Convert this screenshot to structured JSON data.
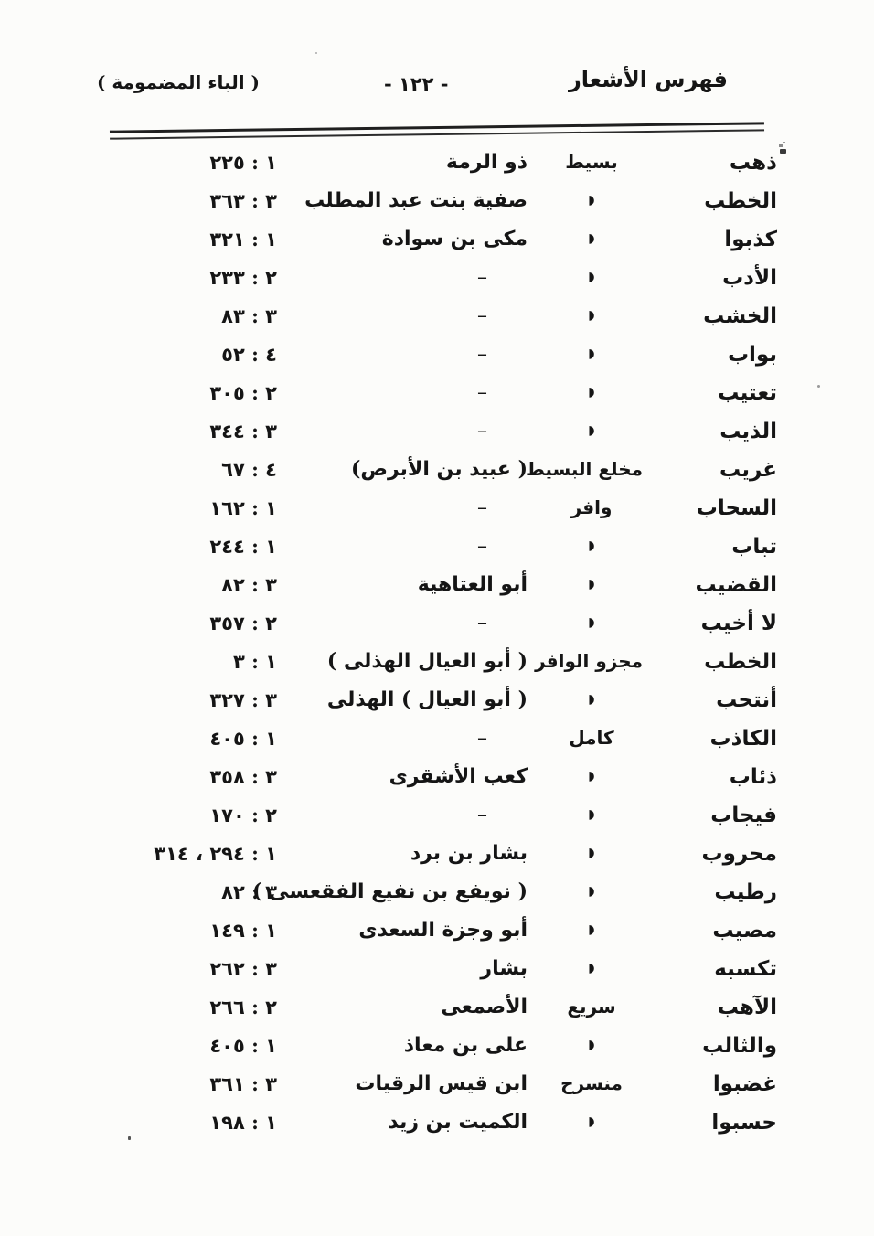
{
  "document": {
    "header": {
      "title": "فهرس الأشعار",
      "page_number": "- ١٢٢ -",
      "section_label": "( الباء المضمومة )"
    },
    "table": {
      "ditto_mark": "◗",
      "empty_mark": "–",
      "rows": [
        {
          "rhyme": "ذهب",
          "meter": "بسيط",
          "poet": "ذو الرمة",
          "ref": "١ : ٢٢٥"
        },
        {
          "rhyme": "الخطب",
          "meter": "◗",
          "poet": "صفية بنت عبد المطلب",
          "ref": "٣ : ٣٦٣"
        },
        {
          "rhyme": "كذبوا",
          "meter": "◗",
          "poet": "مكى بن سوادة",
          "ref": "١ : ٣٢١"
        },
        {
          "rhyme": "الأدب",
          "meter": "◗",
          "poet": "–",
          "ref": "٢ : ٢٣٣"
        },
        {
          "rhyme": "الخشب",
          "meter": "◗",
          "poet": "–",
          "ref": "٣ : ٨٣"
        },
        {
          "rhyme": "بواب",
          "meter": "◗",
          "poet": "–",
          "ref": "٤ : ٥٢"
        },
        {
          "rhyme": "تعتيب",
          "meter": "◗",
          "poet": "–",
          "ref": "٢ : ٣٠٥"
        },
        {
          "rhyme": "الذيب",
          "meter": "◗",
          "poet": "–",
          "ref": "٣ : ٣٤٤"
        },
        {
          "rhyme": "غريب",
          "meter": "مخلع البسيط",
          "poet": "( عبيد بن الأبرص)",
          "ref": "٤ : ٦٧"
        },
        {
          "rhyme": "السحاب",
          "meter": "وافر",
          "poet": "–",
          "ref": "١ : ١٦٢"
        },
        {
          "rhyme": "تباب",
          "meter": "◗",
          "poet": "–",
          "ref": "١ : ٢٤٤"
        },
        {
          "rhyme": "القضيب",
          "meter": "◗",
          "poet": "أبو العتاهية",
          "ref": "٣ : ٨٢"
        },
        {
          "rhyme": "لا أخيب",
          "meter": "◗",
          "poet": "–",
          "ref": "٢ : ٣٥٧"
        },
        {
          "rhyme": "الخطب",
          "meter": "مجزو الوافر",
          "poet": "( أبو العيال الهذلى )",
          "ref": "١ : ٣"
        },
        {
          "rhyme": "أنتحب",
          "meter": "◗",
          "poet": "( أبو العيال ) الهذلى",
          "ref": "٣ : ٣٢٧"
        },
        {
          "rhyme": "الكاذب",
          "meter": "كامل",
          "poet": "–",
          "ref": "١ : ٤٠٥"
        },
        {
          "rhyme": "ذئاب",
          "meter": "◗",
          "poet": "كعب الأشقرى",
          "ref": "٣ : ٣٥٨"
        },
        {
          "rhyme": "فيجاب",
          "meter": "◗",
          "poet": "–",
          "ref": "٢ : ١٧٠"
        },
        {
          "rhyme": "محروب",
          "meter": "◗",
          "poet": "بشار بن برد",
          "ref": "١ : ٢٩٤ ، ٣١٤"
        },
        {
          "rhyme": "رطيب",
          "meter": "◗",
          "poet": "( نويفع بن نفيع الفقعسى )",
          "ref": "٣ : ٨٢"
        },
        {
          "rhyme": "مصيب",
          "meter": "◗",
          "poet": "أبو وجزة السعدى",
          "ref": "١ : ١٤٩"
        },
        {
          "rhyme": "تكسبه",
          "meter": "◗",
          "poet": "بشار",
          "ref": "٣ : ٢٦٢"
        },
        {
          "rhyme": "الآهب",
          "meter": "سريع",
          "poet": "الأصمعى",
          "ref": "٢ : ٢٦٦"
        },
        {
          "rhyme": "والثالب",
          "meter": "◗",
          "poet": "على بن معاذ",
          "ref": "١ : ٤٠٥"
        },
        {
          "rhyme": "غضبوا",
          "meter": "منسرح",
          "poet": "ابن قيس الرقيات",
          "ref": "٣ : ٣٦١"
        },
        {
          "rhyme": "حسبوا",
          "meter": "◗",
          "poet": "الكميت بن زيد",
          "ref": "١ : ١٩٨"
        }
      ]
    }
  }
}
